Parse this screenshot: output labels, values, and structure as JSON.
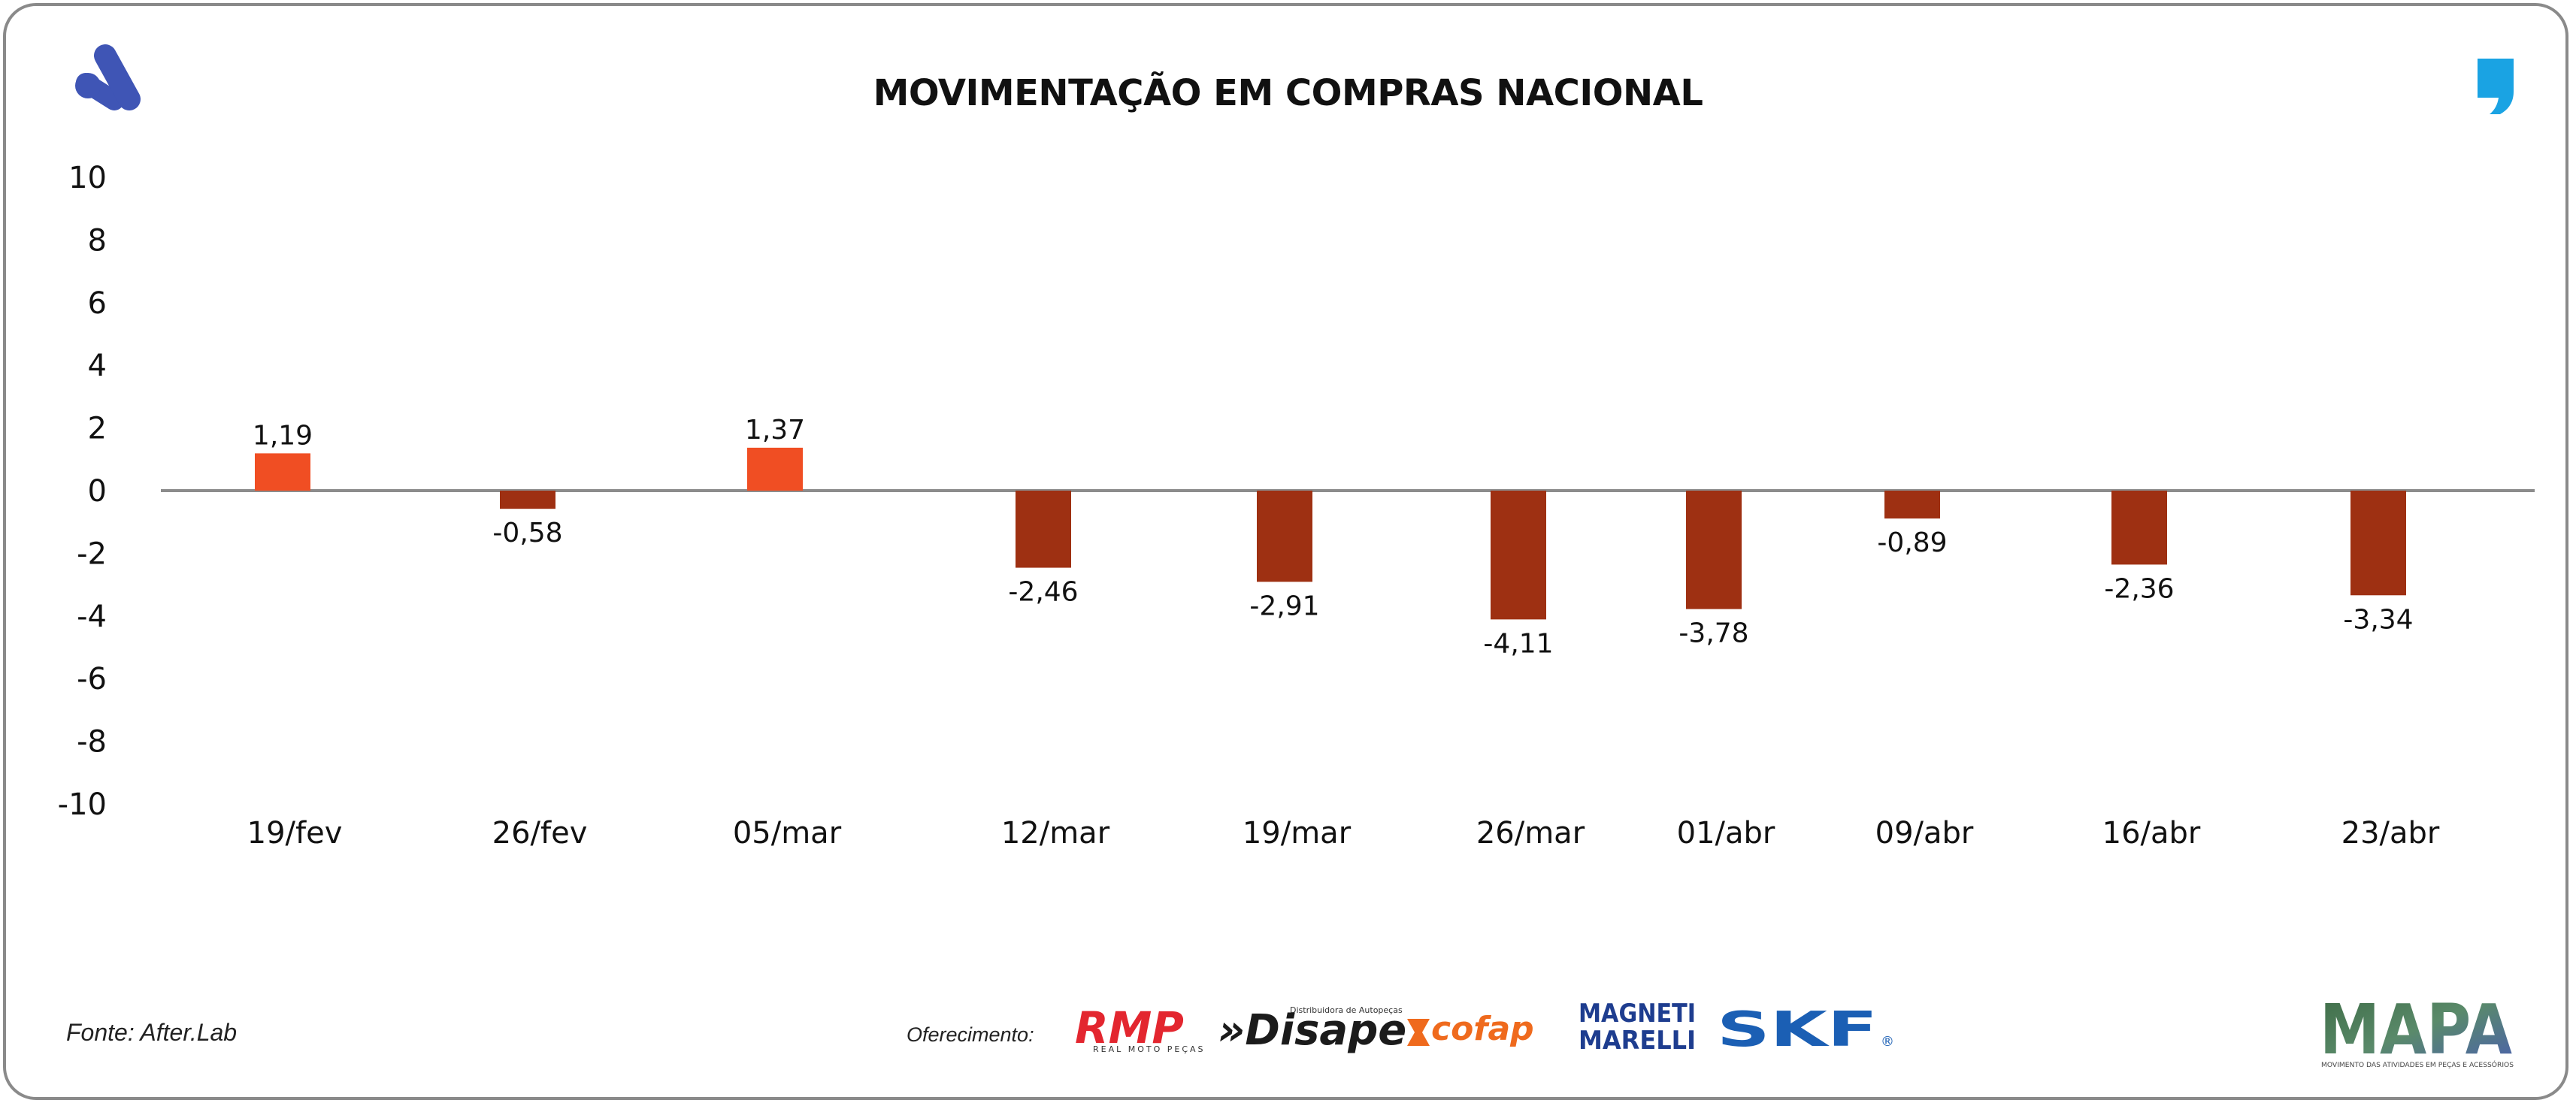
{
  "chart_data": {
    "type": "bar",
    "title": "MOVIMENTAÇÃO EM COMPRAS NACIONAL",
    "xlabel": "",
    "ylabel": "",
    "ylim": [
      -10,
      10
    ],
    "yticks": [
      "10",
      "8",
      "6",
      "4",
      "2",
      "0",
      "-2",
      "-4",
      "-6",
      "-8",
      "-10"
    ],
    "ytick_values": [
      10,
      8,
      6,
      4,
      2,
      0,
      -2,
      -4,
      -6,
      -8,
      -10
    ],
    "categories": [
      "19/fev",
      "26/fev",
      "05/mar",
      "12/mar",
      "19/mar",
      "26/mar",
      "01/abr",
      "09/abr",
      "16/abr",
      "23/abr"
    ],
    "values": [
      1.19,
      -0.58,
      1.37,
      -2.46,
      -2.91,
      -4.11,
      -3.78,
      -0.89,
      -2.36,
      -3.34
    ],
    "labels": [
      "1,19",
      "-0,58",
      "1,37",
      "-2,46",
      "-2,91",
      "-4,11",
      "-3,78",
      "-0,89",
      "-2,36",
      "-3,34"
    ],
    "colors": {
      "positive": "#f04e23",
      "negative": "#9e3012",
      "axis": "#8c8c8c"
    }
  },
  "footer": {
    "source": "Fonte: After.Lab",
    "sponsor_label": "Oferecimento:",
    "sponsors": [
      "RMP",
      "REAL MOTO PEÇAS",
      "»Disape",
      "Distribuidora de Autopeças",
      "cofap",
      "MAGNETI",
      "MARELLI",
      "SKF",
      "®"
    ]
  },
  "brand": {
    "name": "MAPA",
    "tagline": "MOVIMENTO DAS ATIVIDADES EM PEÇAS E ACESSÓRIOS"
  },
  "brand_colors": {
    "a_logo": "#3f55b5",
    "quote": "#1aa3e3"
  }
}
